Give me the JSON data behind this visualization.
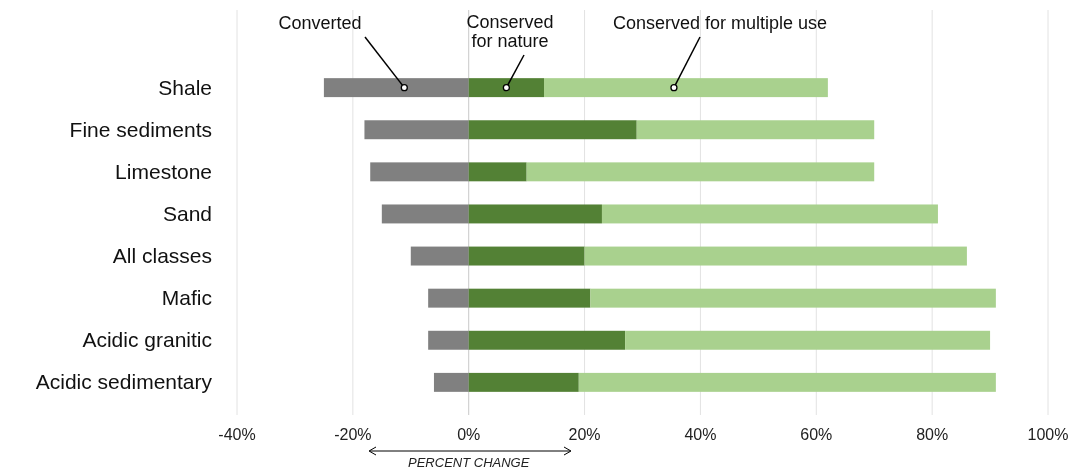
{
  "chart_data": {
    "type": "bar",
    "orientation": "horizontal",
    "stacked": true,
    "xlabel": "PERCENT CHANGE",
    "categories": [
      "Shale",
      "Fine sediments",
      "Limestone",
      "Sand",
      "All classes",
      "Mafic",
      "Acidic granitic",
      "Acidic sedimentary"
    ],
    "series": [
      {
        "name": "Converted",
        "color": "#808080",
        "values": [
          -25,
          -18,
          -17,
          -15,
          -10,
          -7,
          -7,
          -6
        ]
      },
      {
        "name": "Conserved for nature",
        "color": "#538135",
        "values": [
          13,
          29,
          10,
          23,
          20,
          21,
          27,
          19
        ]
      },
      {
        "name": "Conserved for multiple use",
        "color": "#a9d18e",
        "values": [
          49,
          41,
          60,
          58,
          66,
          70,
          63,
          72
        ]
      }
    ],
    "xlim": [
      -40,
      100
    ],
    "xticks": [
      {
        "value": -40,
        "label": "-40%"
      },
      {
        "value": -20,
        "label": "-20%"
      },
      {
        "value": 0,
        "label": "0%"
      },
      {
        "value": 20,
        "label": "20%"
      },
      {
        "value": 40,
        "label": "40%"
      },
      {
        "value": 60,
        "label": "60%"
      },
      {
        "value": 80,
        "label": "80%"
      },
      {
        "value": 100,
        "label": "100%"
      }
    ],
    "grid": "x",
    "legend": false
  }
}
